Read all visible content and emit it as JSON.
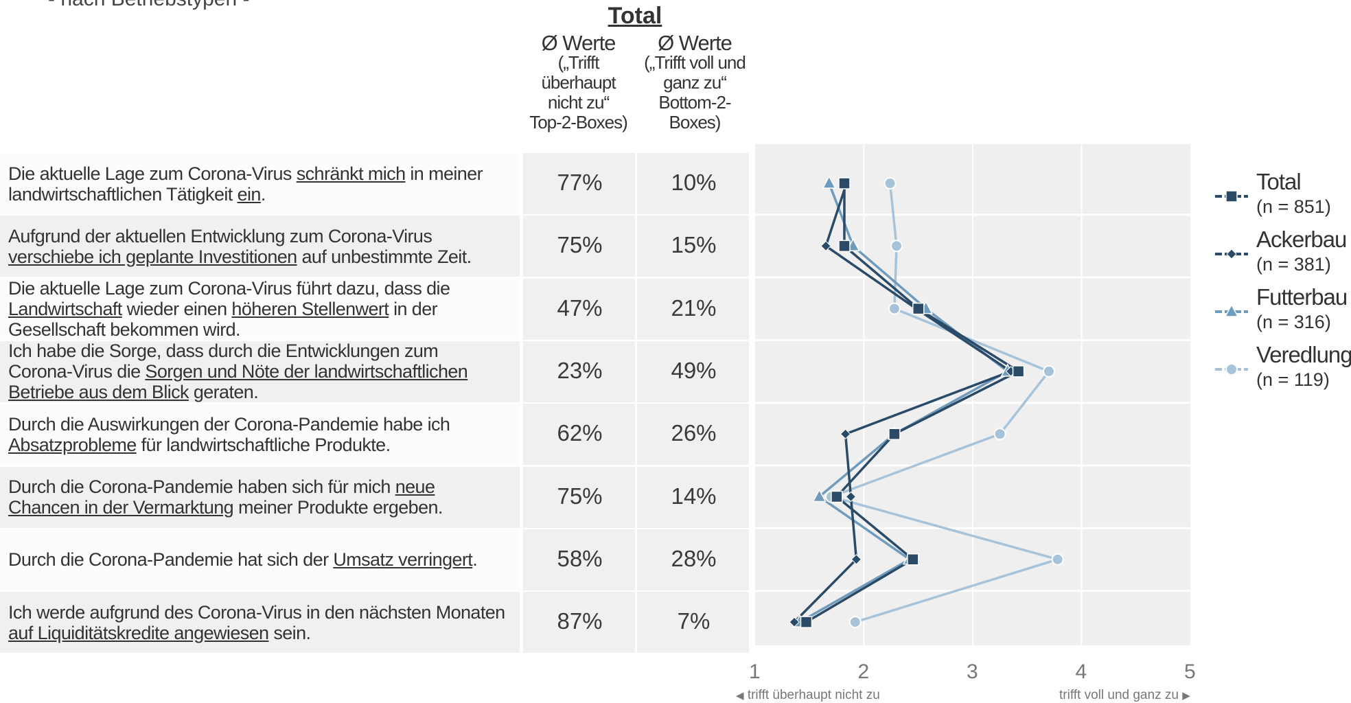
{
  "header": {
    "subtitle": "- nach Betriebstypen -",
    "total_title": "Total",
    "col1": {
      "title": "Ø Werte",
      "text": [
        "(„Trifft",
        "überhaupt",
        "nicht zu“",
        "Top-2-Boxes)"
      ]
    },
    "col2": {
      "title": "Ø Werte",
      "text": [
        "(„Trifft voll und",
        "ganz zu“",
        "Bottom-2-",
        "Boxes)"
      ]
    }
  },
  "rows": [
    {
      "lines": [
        [
          {
            "t": "Die aktuelle Lage zum Corona-Virus "
          },
          {
            "t": "schränkt mich",
            "u": true
          },
          {
            "t": " in meiner"
          }
        ],
        [
          {
            "t": "landwirtschaftlichen Tätigkeit "
          },
          {
            "t": "ein",
            "u": true
          },
          {
            "t": "."
          }
        ]
      ],
      "top2": "77%",
      "bottom2": "10%"
    },
    {
      "lines": [
        [
          {
            "t": "Aufgrund der aktuellen Entwicklung zum Corona-Virus"
          }
        ],
        [
          {
            "t": "verschiebe ich geplante Investitionen",
            "u": true
          },
          {
            "t": " auf unbestimmte Zeit."
          }
        ]
      ],
      "top2": "75%",
      "bottom2": "15%"
    },
    {
      "lines": [
        [
          {
            "t": "Die aktuelle Lage zum Corona-Virus führt dazu, dass die"
          }
        ],
        [
          {
            "t": "Landwirtschaft",
            "u": true
          },
          {
            "t": " wieder einen "
          },
          {
            "t": "höheren Stellenwert",
            "u": true
          },
          {
            "t": " in der"
          }
        ],
        [
          {
            "t": "Gesellschaft bekommen wird."
          }
        ]
      ],
      "top2": "47%",
      "bottom2": "21%"
    },
    {
      "lines": [
        [
          {
            "t": "Ich habe die Sorge, dass durch die Entwicklungen zum"
          }
        ],
        [
          {
            "t": "Corona-Virus die "
          },
          {
            "t": "Sorgen und Nöte der landwirtschaftlichen",
            "u": true
          }
        ],
        [
          {
            "t": "Betriebe aus dem Blick",
            "u": true
          },
          {
            "t": " geraten."
          }
        ]
      ],
      "top2": "23%",
      "bottom2": "49%"
    },
    {
      "lines": [
        [
          {
            "t": "Durch die Auswirkungen der Corona-Pandemie habe ich"
          }
        ],
        [
          {
            "t": "Absatzprobleme",
            "u": true
          },
          {
            "t": " für landwirtschaftliche Produkte."
          }
        ]
      ],
      "top2": "62%",
      "bottom2": "26%"
    },
    {
      "lines": [
        [
          {
            "t": "Durch die Corona-Pandemie haben sich für mich "
          },
          {
            "t": "neue",
            "u": true
          }
        ],
        [
          {
            "t": "Chancen in der Vermarktung",
            "u": true
          },
          {
            "t": " meiner Produkte ergeben."
          }
        ]
      ],
      "top2": "75%",
      "bottom2": "14%"
    },
    {
      "lines": [
        [
          {
            "t": "Durch die Corona-Pandemie hat sich der "
          },
          {
            "t": "Umsatz verringert",
            "u": true
          },
          {
            "t": "."
          }
        ]
      ],
      "top2": "58%",
      "bottom2": "28%"
    },
    {
      "lines": [
        [
          {
            "t": "Ich werde aufgrund des Corona-Virus in den nächsten Monaten"
          }
        ],
        [
          {
            "t": "auf Liquiditätskredite angewiesen",
            "u": true
          },
          {
            "t": " sein."
          }
        ]
      ],
      "top2": "87%",
      "bottom2": "7%"
    }
  ],
  "chart_data": {
    "type": "line",
    "orientation": "horizontal-profile",
    "xlim": [
      1,
      5
    ],
    "x_ticks": [
      "1",
      "2",
      "3",
      "4",
      "5"
    ],
    "x_note_left": "trifft überhaupt nicht zu",
    "x_note_right": "trifft voll und ganz zu",
    "grid": true,
    "legend_position": "right",
    "series": [
      {
        "name": "Total",
        "n": "(n = 851)",
        "color": "#2b4a66",
        "marker": "square",
        "values": [
          1.82,
          1.82,
          2.5,
          3.42,
          2.28,
          1.75,
          2.45,
          1.47
        ]
      },
      {
        "name": "Ackerbau",
        "n": "(n = 381)",
        "color": "#2a4b68",
        "marker": "diamond",
        "values": [
          1.84,
          1.65,
          2.48,
          3.35,
          1.83,
          1.88,
          1.93,
          1.36
        ]
      },
      {
        "name": "Futterbau",
        "n": "(n = 316)",
        "color": "#6f9bbd",
        "marker": "triangle",
        "values": [
          1.68,
          1.9,
          2.57,
          3.32,
          2.28,
          1.59,
          2.42,
          1.41
        ]
      },
      {
        "name": "Veredlung",
        "n": "(n = 119)",
        "color": "#a7c3d9",
        "marker": "circle",
        "values": [
          2.24,
          2.3,
          2.28,
          3.7,
          3.25,
          1.7,
          3.78,
          1.92
        ]
      }
    ]
  }
}
